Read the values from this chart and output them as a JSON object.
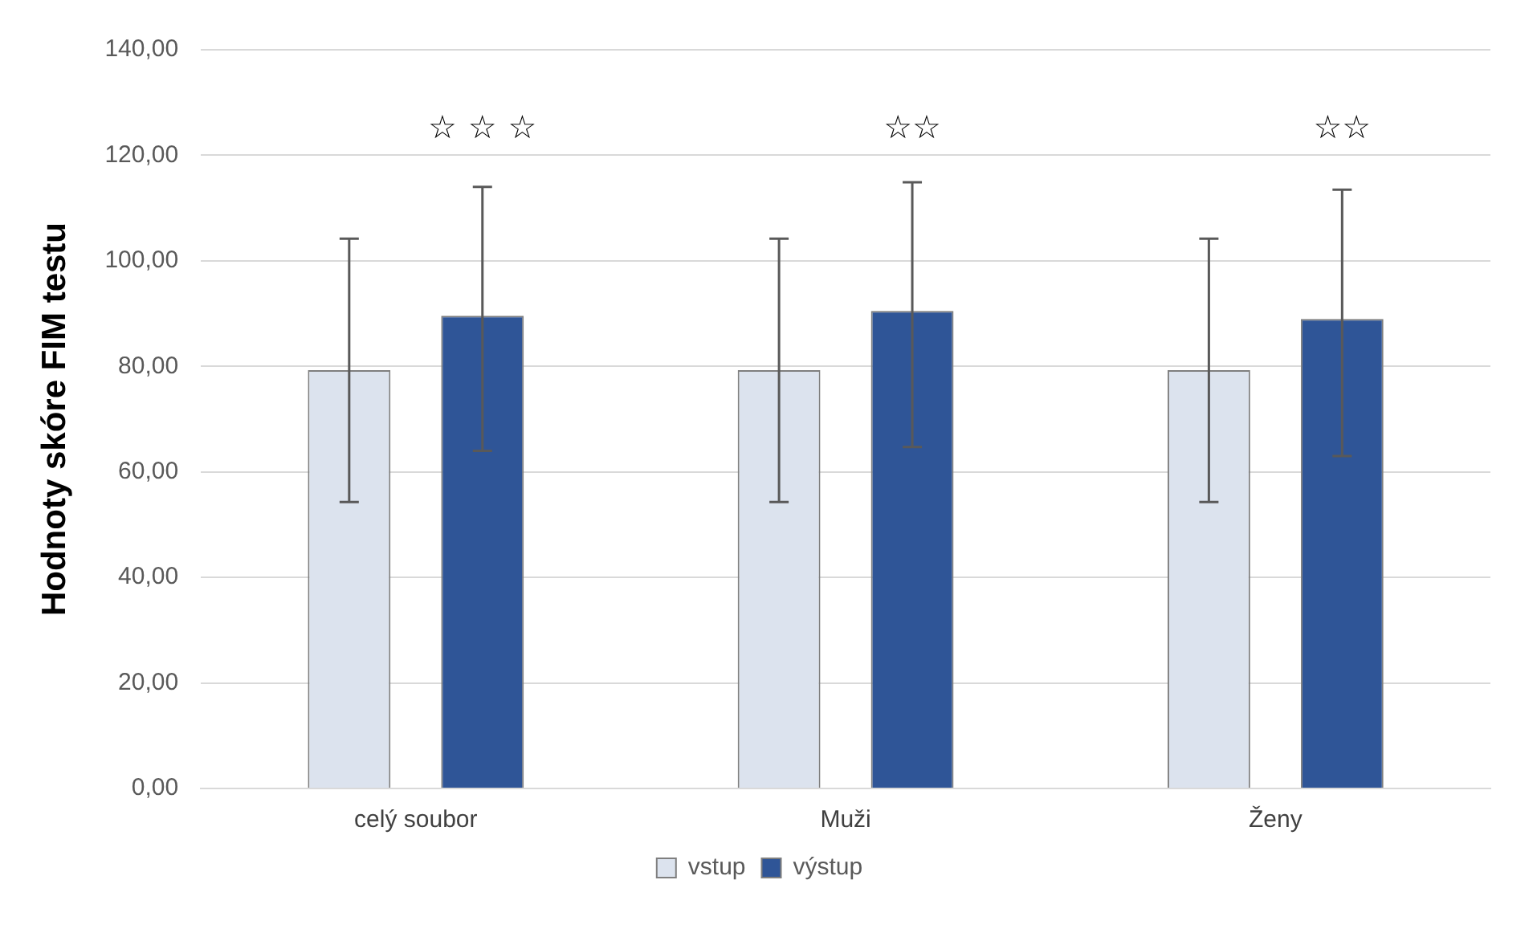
{
  "chart_data": {
    "type": "bar",
    "ylabel": "Hodnoty skóre FIM testu",
    "categories": [
      "celý soubor",
      "Muži",
      "Ženy"
    ],
    "series": [
      {
        "name": "vstup",
        "color": "#dce3ee",
        "values": [
          79.3,
          79.3,
          79.3
        ],
        "errors": [
          [
            54.3,
            104.2
          ],
          [
            54.3,
            104.2
          ],
          [
            54.3,
            104.2
          ]
        ]
      },
      {
        "name": "výstup",
        "color": "#2f5597",
        "values": [
          89.6,
          90.5,
          89.0
        ],
        "errors": [
          [
            64.0,
            114.0
          ],
          [
            64.7,
            114.9
          ],
          [
            63.0,
            113.5
          ]
        ]
      }
    ],
    "ylim": [
      0,
      140
    ],
    "yticks": [
      {
        "value": 0,
        "label": "0,00"
      },
      {
        "value": 20,
        "label": "20,00"
      },
      {
        "value": 40,
        "label": "40,00"
      },
      {
        "value": 60,
        "label": "60,00"
      },
      {
        "value": 80,
        "label": "80,00"
      },
      {
        "value": 100,
        "label": "100,00"
      },
      {
        "value": 120,
        "label": "120,00"
      },
      {
        "value": 140,
        "label": "140,00"
      }
    ],
    "grid": "y",
    "legend": "bottom",
    "annotations": [
      "☆ ☆ ☆",
      "☆☆",
      "☆☆"
    ]
  }
}
